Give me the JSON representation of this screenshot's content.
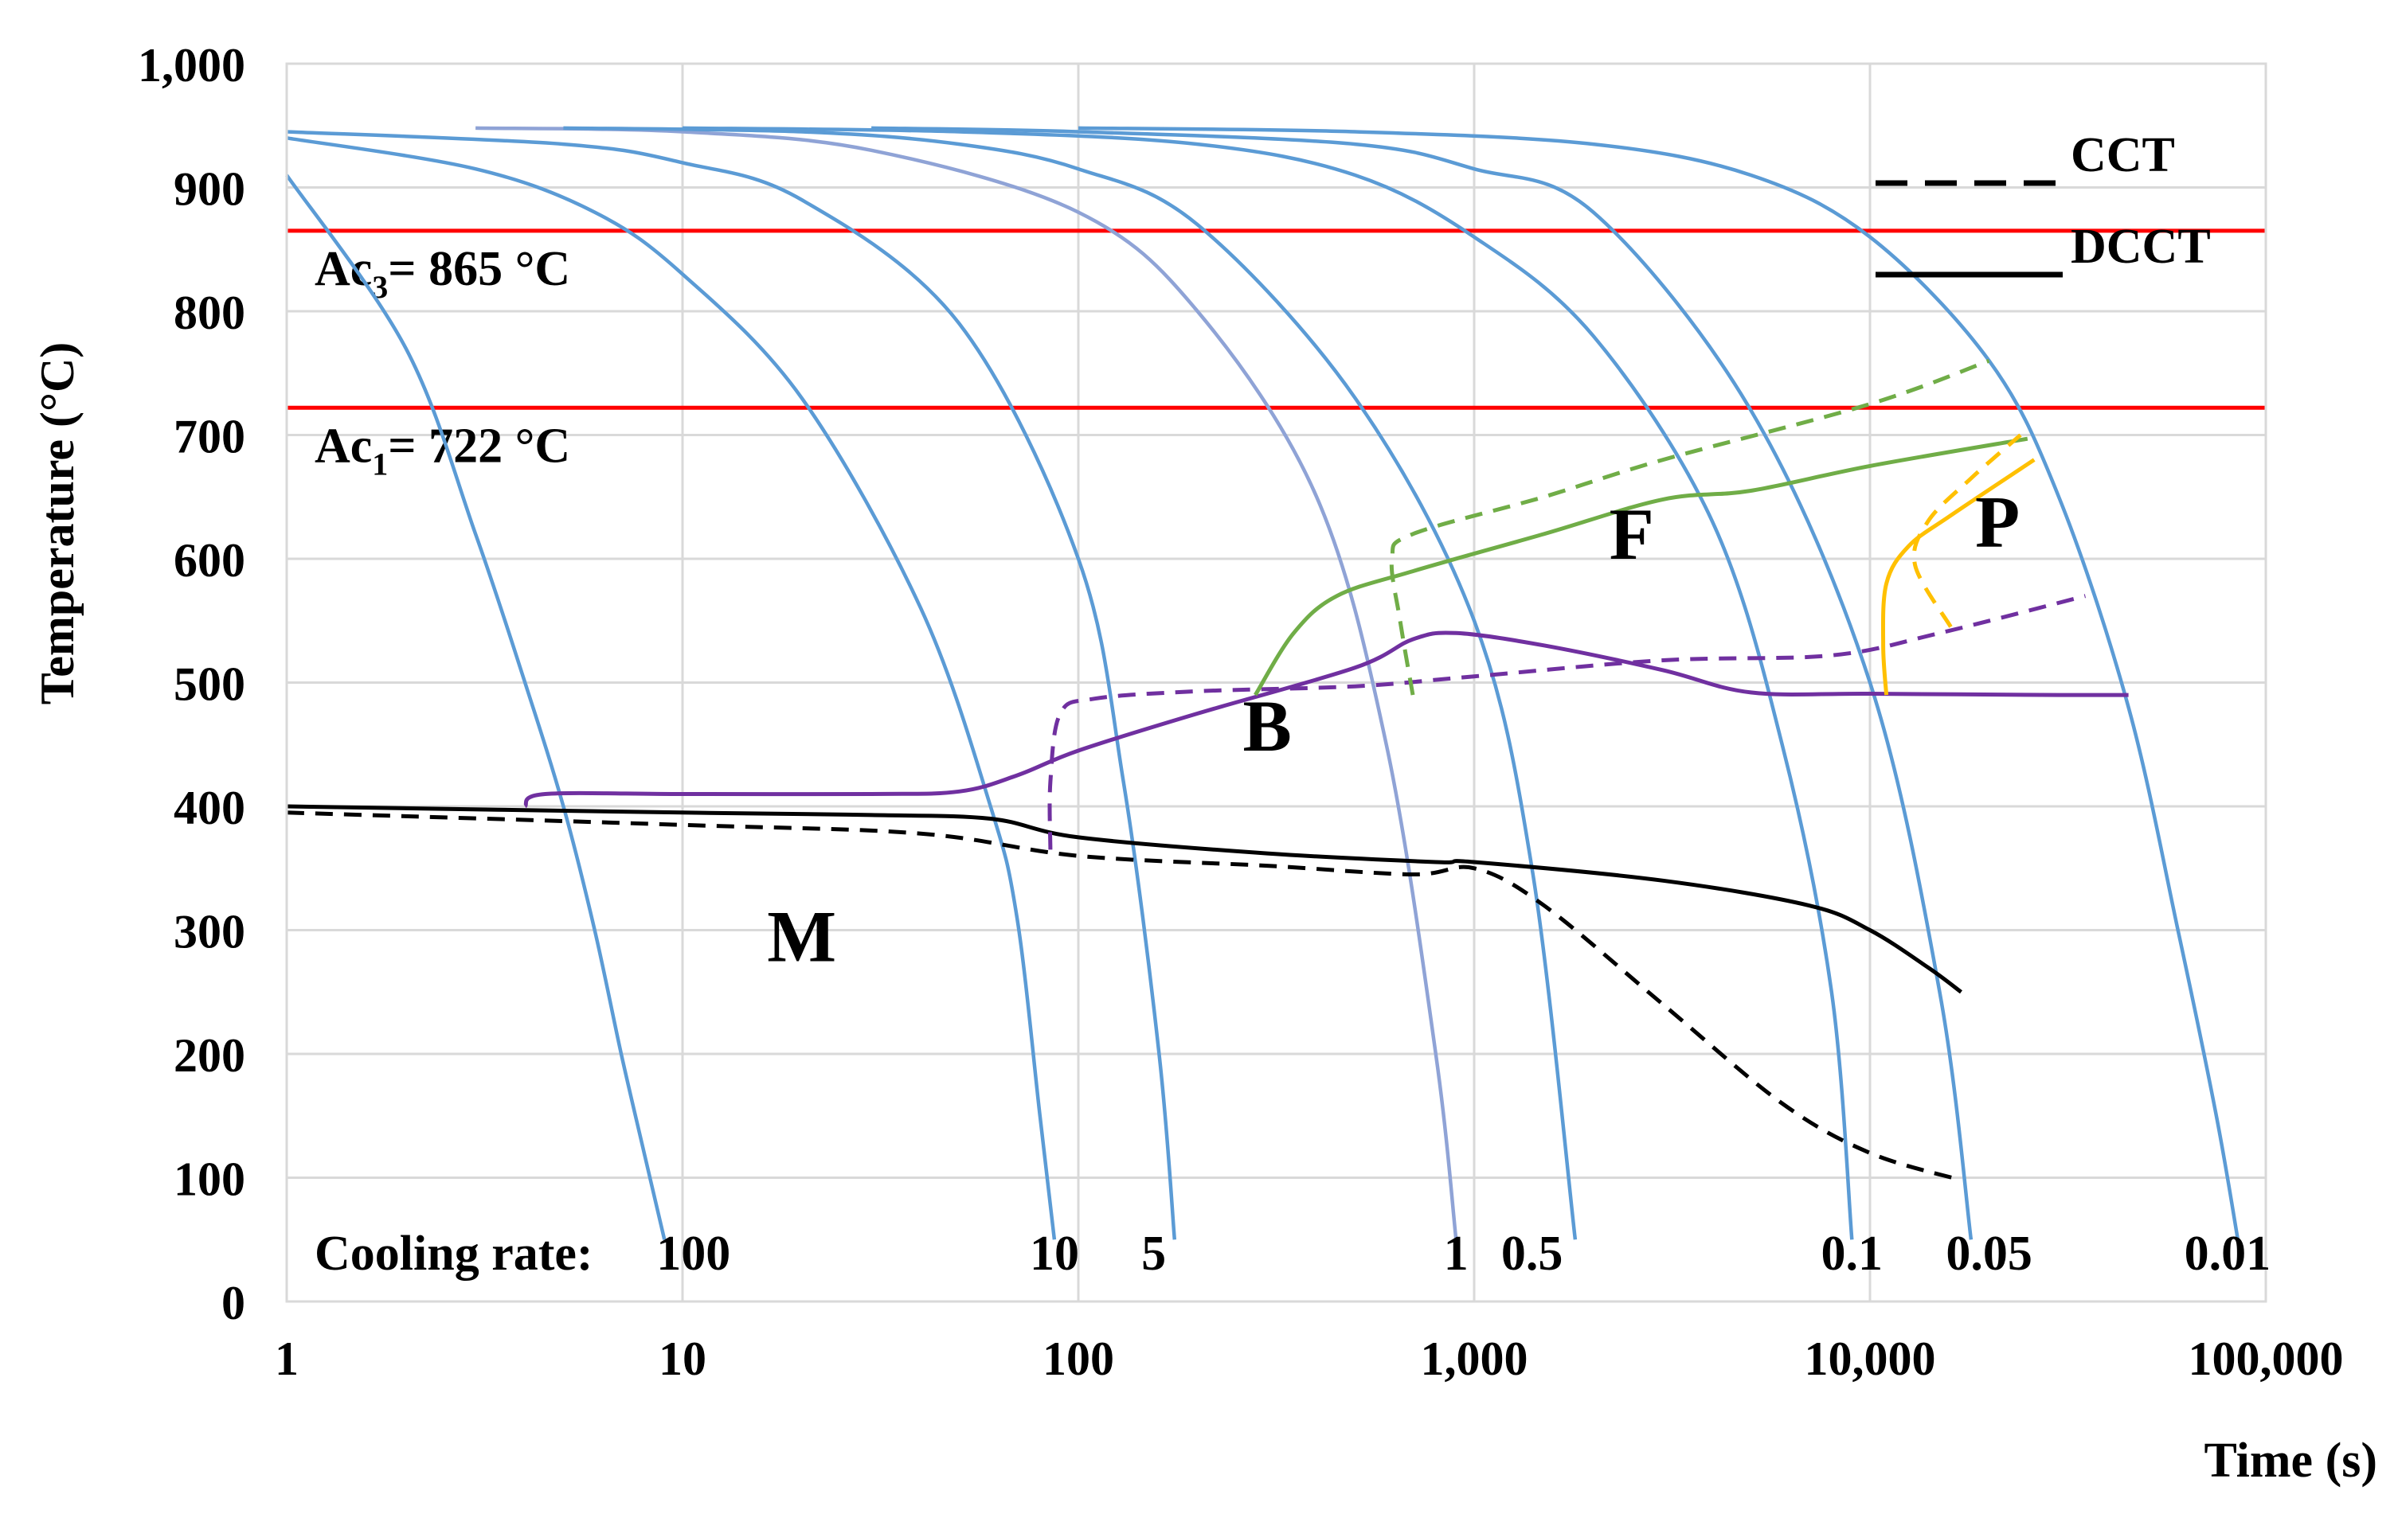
{
  "chart_data": {
    "type": "line",
    "xscale": "log",
    "xlim": [
      1,
      100000
    ],
    "ylim": [
      0,
      1000
    ],
    "xlabel": "Time (s)",
    "ylabel": "Temperature (°C)",
    "xticks": [
      1,
      10,
      100,
      1000,
      10000,
      100000
    ],
    "xtick_labels": [
      "1",
      "10",
      "100",
      "1,000",
      "10,000",
      "100,000"
    ],
    "yticks": [
      0,
      100,
      200,
      300,
      400,
      500,
      600,
      700,
      800,
      900,
      1000
    ],
    "ytick_labels": [
      "0",
      "100",
      "200",
      "300",
      "400",
      "500",
      "600",
      "700",
      "800",
      "900",
      "1,000"
    ],
    "grid": true,
    "hlines": [
      {
        "name": "Ac3",
        "value": 865,
        "label_main": "Ac",
        "label_sub": "3",
        "label_rest": "= 865 °C",
        "color": "#ff0000"
      },
      {
        "name": "Ac1",
        "value": 722,
        "label_main": "Ac",
        "label_sub": "1",
        "label_rest": "= 722 °C",
        "color": "#ff0000"
      }
    ],
    "cooling_rate_label": "Cooling rate:",
    "cooling_curves": [
      {
        "rate": "100",
        "color": "#5b9bd5",
        "points": [
          [
            1,
            910
          ],
          [
            2,
            770
          ],
          [
            3,
            620
          ],
          [
            4,
            500
          ],
          [
            5,
            400
          ],
          [
            6,
            300
          ],
          [
            7,
            200
          ],
          [
            8,
            120
          ],
          [
            9,
            50
          ]
        ]
      },
      {
        "rate": "10",
        "color": "#5b9bd5",
        "points": [
          [
            1,
            940
          ],
          [
            3,
            915
          ],
          [
            6,
            880
          ],
          [
            10,
            830
          ],
          [
            20,
            730
          ],
          [
            40,
            560
          ],
          [
            60,
            400
          ],
          [
            70,
            310
          ],
          [
            80,
            150
          ],
          [
            87,
            50
          ]
        ]
      },
      {
        "rate": "5",
        "color": "#5b9bd5",
        "points": [
          [
            1,
            945
          ],
          [
            5,
            935
          ],
          [
            10,
            920
          ],
          [
            20,
            890
          ],
          [
            50,
            790
          ],
          [
            100,
            600
          ],
          [
            130,
            420
          ],
          [
            160,
            200
          ],
          [
            175,
            50
          ]
        ]
      },
      {
        "rate": "1",
        "color": "#8fa3d6",
        "points": [
          [
            3,
            948
          ],
          [
            10,
            945
          ],
          [
            30,
            930
          ],
          [
            100,
            880
          ],
          [
            200,
            800
          ],
          [
            400,
            650
          ],
          [
            600,
            450
          ],
          [
            800,
            200
          ],
          [
            900,
            50
          ]
        ]
      },
      {
        "rate": "0.5",
        "color": "#5b9bd5",
        "points": [
          [
            5,
            948
          ],
          [
            20,
            945
          ],
          [
            50,
            935
          ],
          [
            100,
            915
          ],
          [
            200,
            870
          ],
          [
            500,
            730
          ],
          [
            1000,
            550
          ],
          [
            1400,
            350
          ],
          [
            1800,
            50
          ]
        ]
      },
      {
        "rate": "0.1",
        "color": "#5b9bd5",
        "points": [
          [
            10,
            948
          ],
          [
            50,
            945
          ],
          [
            200,
            935
          ],
          [
            500,
            910
          ],
          [
            1000,
            860
          ],
          [
            2000,
            780
          ],
          [
            4000,
            630
          ],
          [
            6000,
            450
          ],
          [
            8000,
            250
          ],
          [
            9000,
            50
          ]
        ]
      },
      {
        "rate": "0.05",
        "color": "#5b9bd5",
        "points": [
          [
            30,
            948
          ],
          [
            100,
            945
          ],
          [
            500,
            935
          ],
          [
            1000,
            915
          ],
          [
            2000,
            880
          ],
          [
            5000,
            720
          ],
          [
            10000,
            500
          ],
          [
            15000,
            250
          ],
          [
            18000,
            50
          ]
        ]
      },
      {
        "rate": "0.01",
        "color": "#5b9bd5",
        "points": [
          [
            100,
            948
          ],
          [
            500,
            945
          ],
          [
            2000,
            935
          ],
          [
            5000,
            910
          ],
          [
            10000,
            860
          ],
          [
            20000,
            760
          ],
          [
            30000,
            650
          ],
          [
            45000,
            480
          ],
          [
            60000,
            300
          ],
          [
            75000,
            150
          ],
          [
            85000,
            50
          ]
        ]
      }
    ],
    "phase_curves": [
      {
        "name": "DCCT martensite start",
        "style": "solid",
        "color": "#000000",
        "points": [
          [
            1,
            400
          ],
          [
            10,
            395
          ],
          [
            30,
            393
          ],
          [
            60,
            390
          ],
          [
            100,
            375
          ],
          [
            300,
            362
          ],
          [
            800,
            355
          ],
          [
            1000,
            355
          ],
          [
            3000,
            340
          ],
          [
            7000,
            320
          ],
          [
            10000,
            300
          ],
          [
            14000,
            270
          ],
          [
            17000,
            250
          ]
        ]
      },
      {
        "name": "CCT martensite start",
        "style": "dashed",
        "color": "#000000",
        "points": [
          [
            1,
            395
          ],
          [
            10,
            385
          ],
          [
            40,
            378
          ],
          [
            100,
            360
          ],
          [
            300,
            352
          ],
          [
            700,
            345
          ],
          [
            1000,
            350
          ],
          [
            1500,
            320
          ],
          [
            3000,
            240
          ],
          [
            6000,
            160
          ],
          [
            10000,
            120
          ],
          [
            17000,
            98
          ]
        ]
      },
      {
        "name": "DCCT bainite",
        "style": "solid",
        "color": "#7030a0",
        "points": [
          [
            4,
            400
          ],
          [
            4.5,
            410
          ],
          [
            10,
            410
          ],
          [
            30,
            410
          ],
          [
            50,
            412
          ],
          [
            70,
            425
          ],
          [
            100,
            445
          ],
          [
            200,
            475
          ],
          [
            500,
            512
          ],
          [
            700,
            535
          ],
          [
            900,
            540
          ],
          [
            1500,
            530
          ],
          [
            3000,
            510
          ],
          [
            5000,
            492
          ],
          [
            10000,
            491
          ],
          [
            30000,
            490
          ],
          [
            45000,
            490
          ]
        ]
      },
      {
        "name": "CCT bainite",
        "style": "dashed",
        "color": "#7030a0",
        "points": [
          [
            85,
            365
          ],
          [
            85,
            420
          ],
          [
            90,
            475
          ],
          [
            110,
            487
          ],
          [
            200,
            493
          ],
          [
            500,
            497
          ],
          [
            1000,
            505
          ],
          [
            3000,
            518
          ],
          [
            8000,
            522
          ],
          [
            15000,
            540
          ],
          [
            35000,
            570
          ]
        ]
      },
      {
        "name": "DCCT ferrite",
        "style": "solid",
        "color": "#70ad47",
        "points": [
          [
            280,
            490
          ],
          [
            350,
            540
          ],
          [
            450,
            570
          ],
          [
            700,
            590
          ],
          [
            1500,
            620
          ],
          [
            3000,
            648
          ],
          [
            5000,
            655
          ],
          [
            10000,
            675
          ],
          [
            25000,
            697
          ]
        ]
      },
      {
        "name": "CCT ferrite",
        "style": "dashed",
        "color": "#70ad47",
        "points": [
          [
            700,
            490
          ],
          [
            650,
            550
          ],
          [
            620,
            600
          ],
          [
            700,
            620
          ],
          [
            1500,
            650
          ],
          [
            3000,
            680
          ],
          [
            10000,
            725
          ],
          [
            20000,
            760
          ]
        ]
      },
      {
        "name": "DCCT pearlite",
        "style": "solid",
        "color": "#ffc000",
        "points": [
          [
            11000,
            490
          ],
          [
            10800,
            530
          ],
          [
            11000,
            580
          ],
          [
            12500,
            610
          ],
          [
            16000,
            635
          ],
          [
            26000,
            680
          ]
        ]
      },
      {
        "name": "CCT pearlite",
        "style": "dashed",
        "color": "#ffc000",
        "points": [
          [
            16000,
            545
          ],
          [
            13000,
            595
          ],
          [
            14000,
            630
          ],
          [
            18000,
            665
          ],
          [
            24000,
            700
          ]
        ]
      }
    ],
    "region_labels": [
      {
        "text": "M",
        "x": 20,
        "y": 275
      },
      {
        "text": "B",
        "x": 300,
        "y": 445
      },
      {
        "text": "F",
        "x": 2500,
        "y": 600
      },
      {
        "text": "P",
        "x": 21000,
        "y": 610
      }
    ],
    "legend": [
      {
        "label": "CCT",
        "style": "dashed",
        "color": "#000000"
      },
      {
        "label": "DCCT",
        "style": "solid",
        "color": "#000000"
      }
    ],
    "legend_placement": "top-right"
  }
}
